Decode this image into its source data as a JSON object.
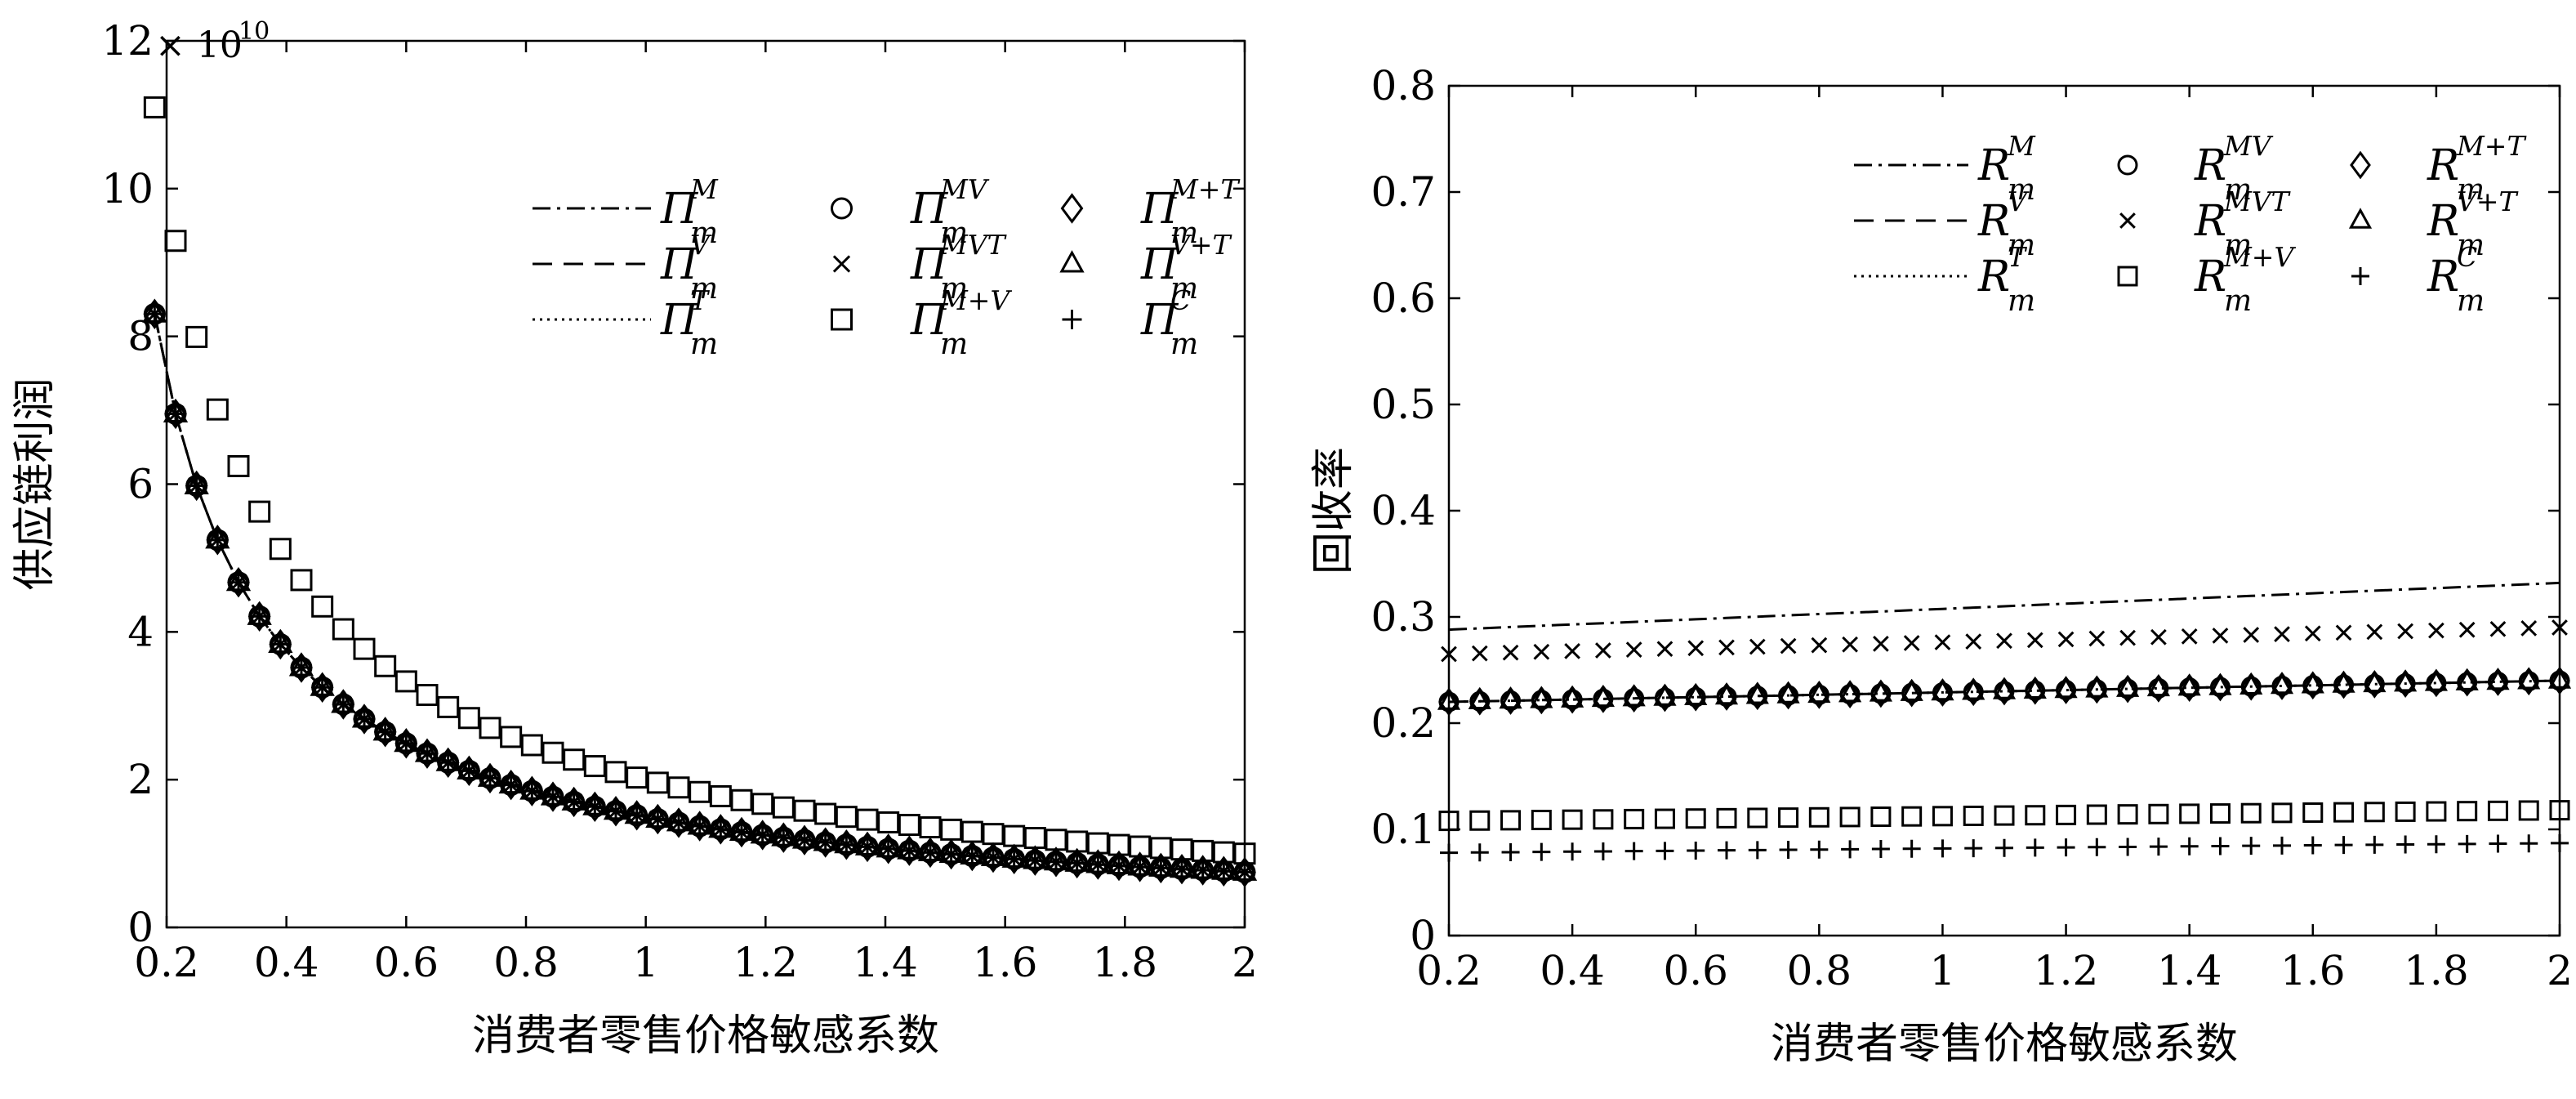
{
  "charts": {
    "left": {
      "ylabel": "供应链利润",
      "xlabel": "消费者零售价格敏感系数",
      "exponent_base": "× 10",
      "exponent_power": "10",
      "xticks": [
        "0.2",
        "0.4",
        "0.6",
        "0.8",
        "1",
        "1.2",
        "1.4",
        "1.6",
        "1.8",
        "2"
      ],
      "yticks": [
        "0",
        "2",
        "4",
        "6",
        "8",
        "10",
        "12"
      ],
      "legend": [
        {
          "base": "Π",
          "sub": "m",
          "sup": "M",
          "style": "dashdot"
        },
        {
          "base": "Π",
          "sub": "m",
          "sup": "V",
          "style": "dashed"
        },
        {
          "base": "Π",
          "sub": "m",
          "sup": "T",
          "style": "dotted"
        },
        {
          "base": "Π",
          "sub": "m",
          "sup": "MV",
          "style": "circle"
        },
        {
          "base": "Π",
          "sub": "m",
          "sup": "MVT",
          "style": "x"
        },
        {
          "base": "Π",
          "sub": "m",
          "sup": "M+V",
          "style": "square"
        },
        {
          "base": "Π",
          "sub": "m",
          "sup": "M+T",
          "style": "diamond"
        },
        {
          "base": "Π",
          "sub": "m",
          "sup": "V+T",
          "style": "triangle"
        },
        {
          "base": "Π",
          "sub": "m",
          "sup": "C",
          "style": "plus"
        }
      ]
    },
    "right": {
      "ylabel": "回收率",
      "xlabel": "消费者零售价格敏感系数",
      "xticks": [
        "0.2",
        "0.4",
        "0.6",
        "0.8",
        "1",
        "1.2",
        "1.4",
        "1.6",
        "1.8",
        "2"
      ],
      "yticks": [
        "0",
        "0.1",
        "0.2",
        "0.3",
        "0.4",
        "0.5",
        "0.6",
        "0.7",
        "0.8"
      ],
      "legend": [
        {
          "base": "R",
          "sub": "m",
          "sup": "M",
          "style": "dashdot"
        },
        {
          "base": "R",
          "sub": "m",
          "sup": "V",
          "style": "dashed"
        },
        {
          "base": "R",
          "sub": "m",
          "sup": "T",
          "style": "dotted"
        },
        {
          "base": "R",
          "sub": "m",
          "sup": "MV",
          "style": "circle"
        },
        {
          "base": "R",
          "sub": "m",
          "sup": "MVT",
          "style": "x"
        },
        {
          "base": "R",
          "sub": "m",
          "sup": "M+V",
          "style": "square"
        },
        {
          "base": "R",
          "sub": "m",
          "sup": "M+T",
          "style": "diamond"
        },
        {
          "base": "R",
          "sub": "m",
          "sup": "V+T",
          "style": "triangle"
        },
        {
          "base": "R",
          "sub": "m",
          "sup": "C",
          "style": "plus"
        }
      ]
    }
  },
  "chart_data": [
    {
      "type": "line",
      "xlabel": "消费者零售价格敏感系数",
      "ylabel": "供应链利润",
      "y_multiplier": "× 10^10",
      "xlim": [
        0.2,
        2
      ],
      "ylim": [
        0,
        12
      ],
      "grid": false,
      "legend_position": "top-right",
      "x_sampling": {
        "start": 0.18,
        "stop": 2.0,
        "step": 0.035
      },
      "series": [
        {
          "name": "Π_m^M",
          "style": "dashdot",
          "model": "y = 1.4946 / x",
          "approx_values": {
            "0.2": 7.47,
            "0.4": 3.74,
            "0.6": 2.49,
            "1": 1.49,
            "2": 0.75
          }
        },
        {
          "name": "Π_m^V",
          "style": "dashed",
          "model": "y = 1.4946 / x",
          "approx_values": {
            "0.2": 7.47,
            "0.4": 3.74,
            "0.6": 2.49,
            "1": 1.49,
            "2": 0.75
          }
        },
        {
          "name": "Π_m^T",
          "style": "dotted",
          "model": "y = 1.4946 / x",
          "approx_values": {
            "0.2": 7.47,
            "0.4": 3.74,
            "0.6": 2.49,
            "1": 1.49,
            "2": 0.75
          }
        },
        {
          "name": "Π_m^MV",
          "style": "circle",
          "model": "y = 1.4946 / x",
          "approx_values": {
            "0.2": 7.47,
            "0.4": 3.74,
            "0.6": 2.49,
            "1": 1.49,
            "2": 0.75
          }
        },
        {
          "name": "Π_m^MVT",
          "style": "x",
          "model": "y = 1.4946 / x",
          "approx_values": {
            "0.2": 7.47,
            "0.4": 3.74,
            "0.6": 2.49,
            "1": 1.49,
            "2": 0.75
          }
        },
        {
          "name": "Π_m^M+V",
          "style": "square",
          "model": "y = 1.998 / x",
          "approx_values": {
            "0.2": 9.99,
            "0.4": 5.0,
            "0.6": 3.33,
            "1": 2.0,
            "2": 1.0
          }
        },
        {
          "name": "Π_m^M+T",
          "style": "diamond",
          "model": "y = 1.4946 / x",
          "approx_values": {
            "0.2": 7.47,
            "0.4": 3.74,
            "0.6": 2.49,
            "1": 1.49,
            "2": 0.75
          }
        },
        {
          "name": "Π_m^V+T",
          "style": "triangle",
          "model": "y = 1.4946 / x",
          "approx_values": {
            "0.2": 7.47,
            "0.4": 3.74,
            "0.6": 2.49,
            "1": 1.49,
            "2": 0.75
          }
        },
        {
          "name": "Π_m^C",
          "style": "plus",
          "model": "y = 1.4946 / x",
          "approx_values": {
            "0.2": 7.47,
            "0.4": 3.74,
            "0.6": 2.49,
            "1": 1.49,
            "2": 0.75
          }
        }
      ]
    },
    {
      "type": "line",
      "xlabel": "消费者零售价格敏感系数",
      "ylabel": "回收率",
      "xlim": [
        0.2,
        2
      ],
      "ylim": [
        0,
        0.8
      ],
      "grid": false,
      "legend_position": "top-right",
      "x_sampling": {
        "start": 0.2,
        "stop": 2.0,
        "step": 0.05
      },
      "series": [
        {
          "name": "R_m^M",
          "style": "dashdot",
          "values": {
            "0.2": 0.288,
            "2": 0.332
          }
        },
        {
          "name": "R_m^V",
          "style": "dashed",
          "values": {
            "0.2": 0.22,
            "2": 0.24
          }
        },
        {
          "name": "R_m^T",
          "style": "dotted",
          "values": {
            "0.2": 0.22,
            "2": 0.24
          }
        },
        {
          "name": "R_m^MV",
          "style": "circle",
          "values": {
            "0.2": 0.22,
            "2": 0.24
          }
        },
        {
          "name": "R_m^MVT",
          "style": "x",
          "values": {
            "0.2": 0.265,
            "2": 0.29
          }
        },
        {
          "name": "R_m^M+V",
          "style": "square",
          "values": {
            "0.2": 0.108,
            "2": 0.118
          }
        },
        {
          "name": "R_m^M+T",
          "style": "diamond",
          "values": {
            "0.2": 0.22,
            "2": 0.24
          }
        },
        {
          "name": "R_m^V+T",
          "style": "triangle",
          "values": {
            "0.2": 0.22,
            "2": 0.24
          }
        },
        {
          "name": "R_m^C",
          "style": "plus",
          "values": {
            "0.2": 0.078,
            "2": 0.087
          }
        }
      ]
    }
  ]
}
